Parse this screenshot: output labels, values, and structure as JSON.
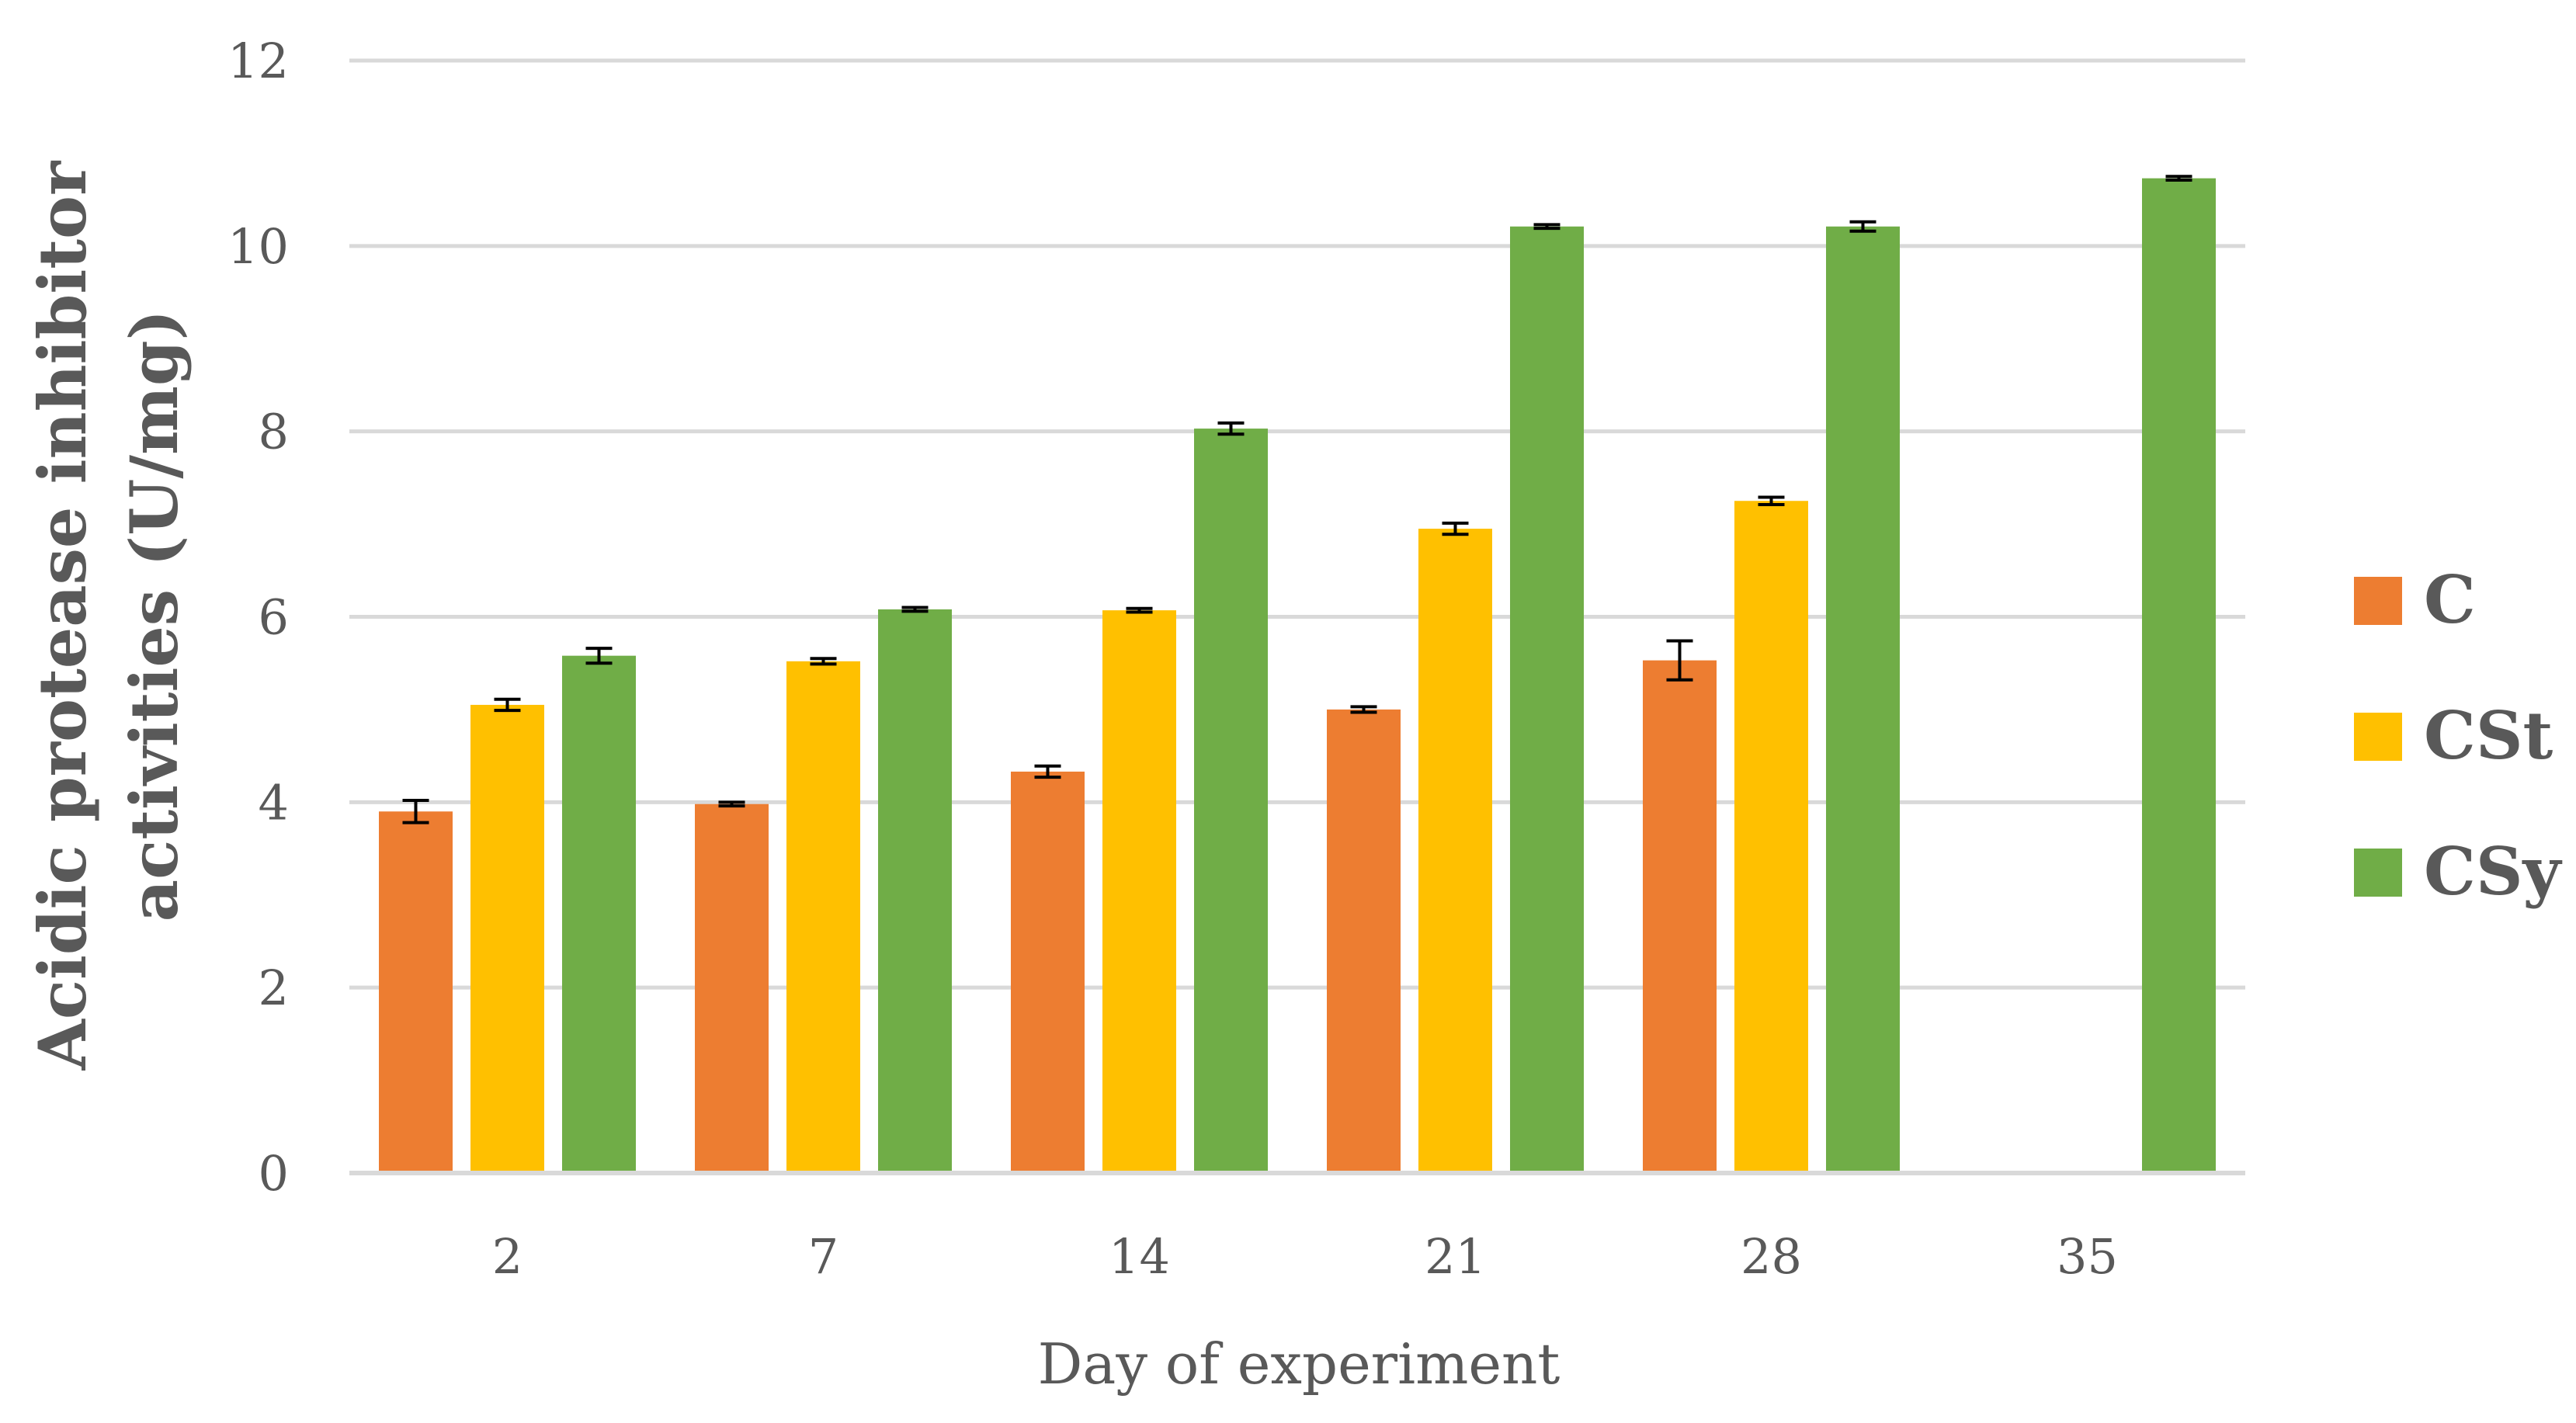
{
  "chart_data": {
    "type": "bar",
    "title": "",
    "xlabel": "Day of experiment",
    "ylabel_lines": [
      "Acidic protease inhibitor",
      "activities (U/mg)"
    ],
    "ylabel": "Acidic protease inhibitor activities (U/mg)",
    "categories": [
      "2",
      "7",
      "14",
      "21",
      "28",
      "35"
    ],
    "ylim": [
      0,
      12
    ],
    "yticks": [
      "0",
      "2",
      "4",
      "6",
      "8",
      "10",
      "12"
    ],
    "grid": true,
    "legend_position": "right",
    "series": [
      {
        "name": "C",
        "color": "#ED7D31",
        "values": [
          3.9,
          3.98,
          4.33,
          5.0,
          5.53,
          null
        ],
        "errors": [
          0.12,
          0.02,
          0.06,
          0.03,
          0.21,
          null
        ]
      },
      {
        "name": "CSt",
        "color": "#FFC000",
        "values": [
          5.05,
          5.52,
          6.07,
          6.95,
          7.25,
          null
        ],
        "errors": [
          0.06,
          0.03,
          0.02,
          0.06,
          0.04,
          null
        ]
      },
      {
        "name": "CSy",
        "color": "#70AD47",
        "values": [
          5.58,
          6.08,
          8.03,
          10.21,
          10.21,
          10.73
        ],
        "errors": [
          0.08,
          0.02,
          0.06,
          0.02,
          0.05,
          0.02
        ]
      }
    ]
  }
}
